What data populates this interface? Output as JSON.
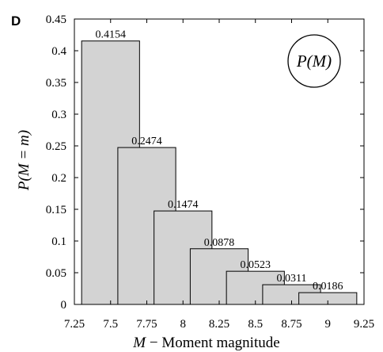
{
  "panel_label": "D",
  "chart_data": {
    "type": "bar",
    "x": [
      7.5,
      7.75,
      8,
      8.25,
      8.5,
      8.75,
      9
    ],
    "values": [
      0.4154,
      0.2474,
      0.1474,
      0.0878,
      0.0523,
      0.0311,
      0.0186
    ],
    "value_labels": [
      "0.4154",
      "0.2474",
      "0.1474",
      "0.0878",
      "0.0523",
      "0.0311",
      "0.0186"
    ],
    "xlabel_var": "M",
    "xlabel_text": " − Moment magnitude",
    "ylabel": "P(M = m)",
    "xlim": [
      7.25,
      9.25
    ],
    "ylim": [
      0,
      0.45
    ],
    "xticks": [
      "7.25",
      "7.5",
      "7.75",
      "8",
      "8.25",
      "8.5",
      "8.75",
      "9",
      "9.25"
    ],
    "yticks": [
      "0",
      "0.05",
      "0.1",
      "0.15",
      "0.2",
      "0.25",
      "0.3",
      "0.35",
      "0.4",
      "0.45"
    ],
    "annotation": "P(M)",
    "grid": false,
    "bar_color": "#d3d3d3",
    "edge_color": "#000000"
  }
}
